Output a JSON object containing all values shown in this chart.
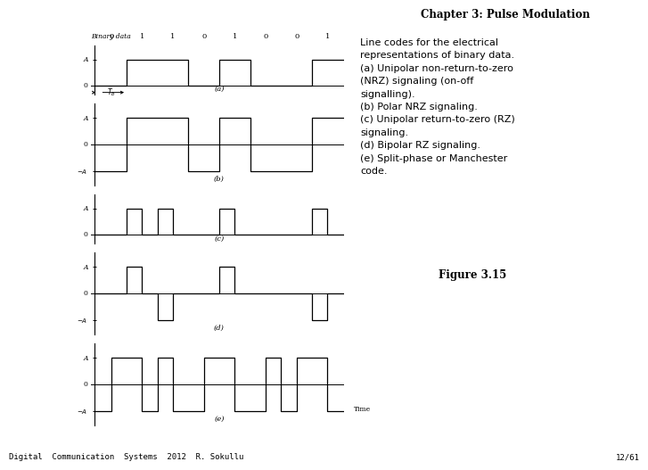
{
  "title": "Chapter 3: Pulse Modulation",
  "binary_data": [
    0,
    1,
    1,
    0,
    1,
    0,
    0,
    1
  ],
  "right_text_lines": [
    "Line codes for the electrical",
    "representations of binary data.",
    "(a) Unipolar non-return-to-zero",
    "(NRZ) signaling (on-off",
    "signalling).",
    "(b) Polar NRZ signaling.",
    "(c) Unipolar return-to-zero (RZ)",
    "signaling.",
    "(d) Bipolar RZ signaling.",
    "(e) Split-phase or Manchester",
    "code."
  ],
  "figure_label": "Figure 3.15",
  "footer_left": "Digital  Communication  Systems  2012  R. Sokullu",
  "footer_right": "12/61",
  "subplot_labels": [
    "(a)",
    "(b)",
    "(c)",
    "(d)",
    "(e)"
  ],
  "background": "#ffffff",
  "line_color": "#000000",
  "waveform_types": [
    "unipolar_nrz",
    "polar_nrz",
    "unipolar_rz",
    "bipolar_rz",
    "manchester"
  ]
}
